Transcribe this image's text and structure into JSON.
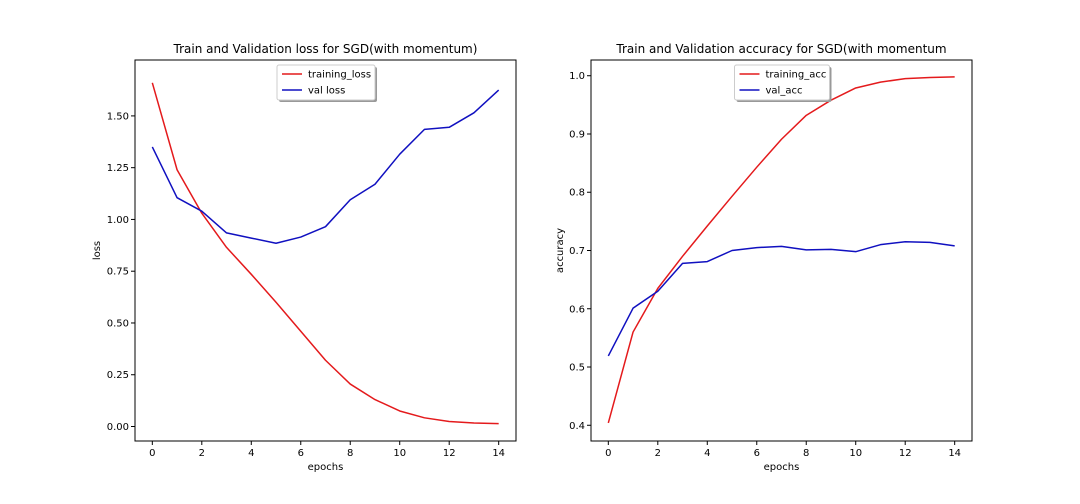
{
  "chart_data": [
    {
      "type": "line",
      "title": "Train and Validation loss for SGD(with momentum)",
      "xlabel": "epochs",
      "ylabel": "loss",
      "xlim": [
        -0.7,
        14.7
      ],
      "ylim": [
        -0.07,
        1.77
      ],
      "xticks": [
        0,
        2,
        4,
        6,
        8,
        10,
        12,
        14
      ],
      "xtick_labels": [
        "0",
        "2",
        "4",
        "6",
        "8",
        "10",
        "12",
        "14"
      ],
      "yticks": [
        0.0,
        0.25,
        0.5,
        0.75,
        1.0,
        1.25,
        1.5
      ],
      "ytick_labels": [
        "0.00",
        "0.25",
        "0.50",
        "0.75",
        "1.00",
        "1.25",
        "1.50"
      ],
      "grid": false,
      "legend_position": "upper-center",
      "x": [
        0,
        1,
        2,
        3,
        4,
        5,
        6,
        7,
        8,
        9,
        10,
        11,
        12,
        13,
        14
      ],
      "series": [
        {
          "name": "training_loss",
          "color": "#e41a1c",
          "values": [
            1.66,
            1.24,
            1.03,
            0.865,
            0.735,
            0.6,
            0.46,
            0.32,
            0.205,
            0.13,
            0.075,
            0.042,
            0.024,
            0.017,
            0.014
          ]
        },
        {
          "name": "val loss",
          "color": "#1010c0",
          "values": [
            1.35,
            1.105,
            1.04,
            0.935,
            0.91,
            0.885,
            0.915,
            0.965,
            1.095,
            1.17,
            1.315,
            1.435,
            1.445,
            1.515,
            1.625
          ]
        }
      ]
    },
    {
      "type": "line",
      "title": "Train and Validation accuracy for SGD(with momentum",
      "xlabel": "epochs",
      "ylabel": "accuracy",
      "xlim": [
        -0.7,
        14.7
      ],
      "ylim": [
        0.373,
        1.027
      ],
      "xticks": [
        0,
        2,
        4,
        6,
        8,
        10,
        12,
        14
      ],
      "xtick_labels": [
        "0",
        "2",
        "4",
        "6",
        "8",
        "10",
        "12",
        "14"
      ],
      "yticks": [
        0.4,
        0.5,
        0.6,
        0.7,
        0.8,
        0.9,
        1.0
      ],
      "ytick_labels": [
        "0.4",
        "0.5",
        "0.6",
        "0.7",
        "0.8",
        "0.9",
        "1.0"
      ],
      "grid": false,
      "legend_position": "upper-center",
      "x": [
        0,
        1,
        2,
        3,
        4,
        5,
        6,
        7,
        8,
        9,
        10,
        11,
        12,
        13,
        14
      ],
      "series": [
        {
          "name": "training_acc",
          "color": "#e41a1c",
          "values": [
            0.404,
            0.56,
            0.635,
            0.69,
            0.742,
            0.793,
            0.843,
            0.891,
            0.932,
            0.958,
            0.979,
            0.989,
            0.995,
            0.997,
            0.998
          ]
        },
        {
          "name": "val_acc",
          "color": "#1010c0",
          "values": [
            0.519,
            0.601,
            0.63,
            0.678,
            0.681,
            0.7,
            0.705,
            0.707,
            0.701,
            0.702,
            0.698,
            0.71,
            0.715,
            0.714,
            0.708
          ]
        }
      ]
    }
  ]
}
